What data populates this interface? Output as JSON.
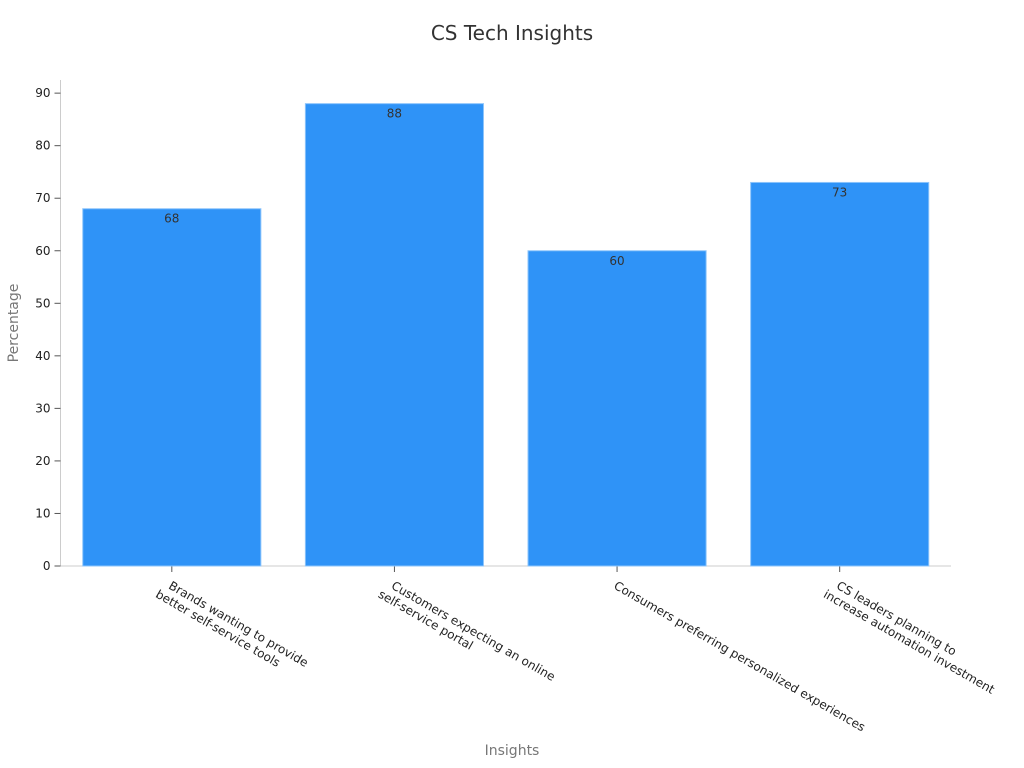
{
  "chart_data": {
    "type": "bar",
    "title": "CS Tech Insights",
    "x_label": "Insights",
    "y_label": "Percentage",
    "categories": [
      "Brands wanting to provide\nbetter self-service tools",
      "Customers expecting an online\nself-service portal",
      "Consumers preferring personalized experiences",
      "CS leaders planning to\nincrease automation investment"
    ],
    "values": [
      68,
      88,
      60,
      73
    ],
    "color": "#2f93f7",
    "ylim": [
      0,
      92.5
    ],
    "yticks": [
      0,
      10,
      20,
      30,
      40,
      50,
      60,
      70,
      80,
      90
    ],
    "grid": false
  }
}
